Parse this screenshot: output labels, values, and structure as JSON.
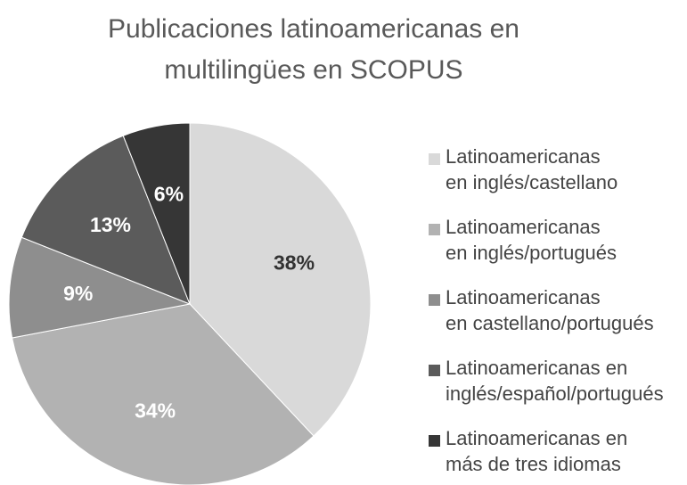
{
  "chart_data": {
    "type": "pie",
    "title": "Publicaciones latinoamericanas en\nmultilingües en SCOPUS",
    "categories": [
      "Latinoamericanas\nen inglés/castellano",
      "Latinoamericanas\nen inglés/portugués",
      "Latinoamericanas\nen castellano/portugués",
      "Latinoamericanas en\ninglés/español/portugués",
      "Latinoamericanas en\nmás de tres idiomas"
    ],
    "values": [
      38,
      34,
      9,
      13,
      6
    ],
    "value_labels": [
      "38%",
      "34%",
      "9%",
      "13%",
      "6%"
    ],
    "colors": [
      "#d9d9d9",
      "#b2b2b2",
      "#8e8e8e",
      "#5b5b5b",
      "#363636"
    ],
    "label_colors": [
      "#333333",
      "#ffffff",
      "#ffffff",
      "#ffffff",
      "#ffffff"
    ],
    "legend": "right"
  }
}
